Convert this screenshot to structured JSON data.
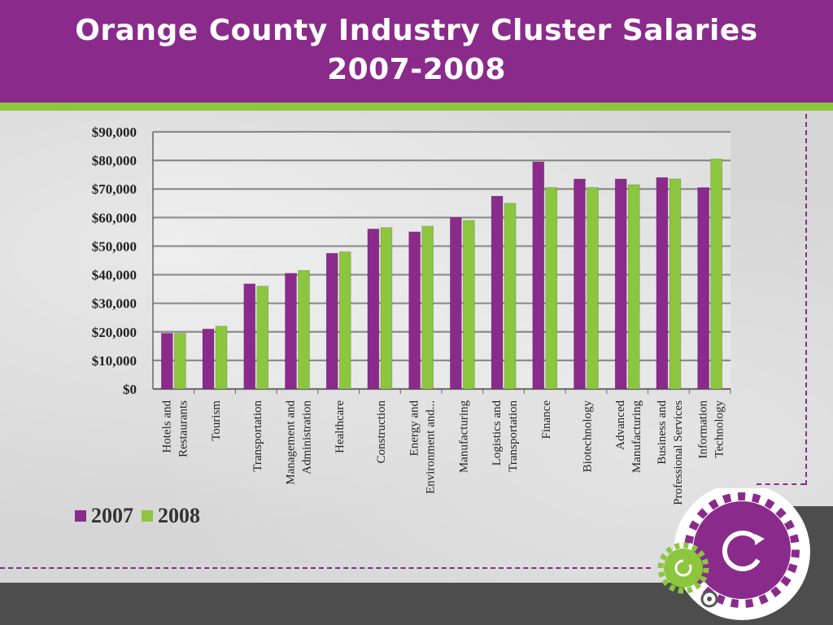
{
  "slide": {
    "title_line1": "Orange County Industry Cluster Salaries",
    "title_line2": "2007-2008"
  },
  "colors": {
    "primary_purple": "#8a2b8b",
    "accent_green": "#8cc63f",
    "series_2007": "#8a2b8b",
    "series_2008": "#8cc63f"
  },
  "chart_data": {
    "type": "bar",
    "title": "",
    "xlabel": "",
    "ylabel": "",
    "ylim": [
      0,
      90000
    ],
    "y_ticks": [
      0,
      10000,
      20000,
      30000,
      40000,
      50000,
      60000,
      70000,
      80000,
      90000
    ],
    "y_tick_labels": [
      "$0",
      "$10,000",
      "$20,000",
      "$30,000",
      "$40,000",
      "$50,000",
      "$60,000",
      "$70,000",
      "$80,000",
      "$90,000"
    ],
    "grid": true,
    "legend_position": "bottom-left",
    "categories": [
      [
        "Hotels and",
        "Restaurants"
      ],
      [
        "Tourism"
      ],
      [
        "Transportation"
      ],
      [
        "Management and",
        "Administration"
      ],
      [
        "Healthcare"
      ],
      [
        "Construction"
      ],
      [
        "Energy and",
        "Environment and..."
      ],
      [
        "Manufacturing"
      ],
      [
        "Logistics and",
        "Transportation"
      ],
      [
        "Finance"
      ],
      [
        "Biotechnology"
      ],
      [
        "Advanced",
        "Manufacturing"
      ],
      [
        "Business and",
        "Professional Services"
      ],
      [
        "Information",
        "Technology"
      ]
    ],
    "series": [
      {
        "name": "2007",
        "values": [
          19500,
          21000,
          36800,
          40500,
          47500,
          56000,
          55000,
          60000,
          67500,
          79500,
          73500,
          73500,
          74000,
          70500
        ]
      },
      {
        "name": "2008",
        "values": [
          19500,
          22000,
          36000,
          41500,
          48000,
          56500,
          57000,
          59000,
          65000,
          70500,
          70500,
          71500,
          73500,
          80500
        ]
      }
    ]
  }
}
